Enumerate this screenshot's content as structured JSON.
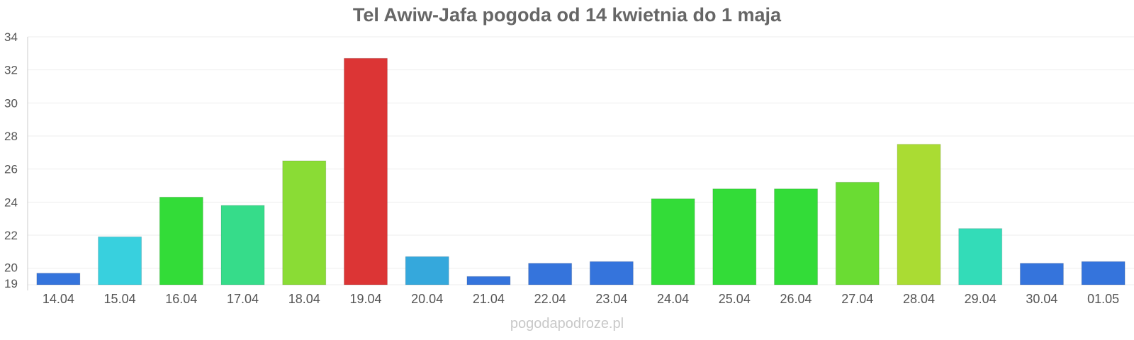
{
  "chart_data": {
    "type": "bar",
    "title": "Tel Awiw-Jafa pogoda od 14 kwietnia do 1 maja",
    "xlabel": "",
    "ylabel": "",
    "ylim": [
      19,
      34
    ],
    "yticks": [
      19,
      20,
      22,
      24,
      26,
      28,
      30,
      32,
      34
    ],
    "grid": true,
    "categories": [
      "14.04",
      "15.04",
      "16.04",
      "17.04",
      "18.04",
      "19.04",
      "20.04",
      "21.04",
      "22.04",
      "23.04",
      "24.04",
      "25.04",
      "26.04",
      "27.04",
      "28.04",
      "29.04",
      "30.04",
      "01.05"
    ],
    "values": [
      19.7,
      21.9,
      24.3,
      23.8,
      26.5,
      32.7,
      20.7,
      19.5,
      20.3,
      20.4,
      24.2,
      24.8,
      24.8,
      25.2,
      27.5,
      22.4,
      20.3,
      20.4
    ],
    "colors": [
      "#3574dc",
      "#38d0de",
      "#33dc38",
      "#36dc8a",
      "#8adc35",
      "#dc3535",
      "#35a8dc",
      "#3574dc",
      "#3574dc",
      "#3574dc",
      "#33dc38",
      "#33dc38",
      "#33dc38",
      "#6adc33",
      "#aadc33",
      "#33dcb8",
      "#3574dc",
      "#3574dc"
    ]
  },
  "watermark": "pogodapodroze.pl"
}
